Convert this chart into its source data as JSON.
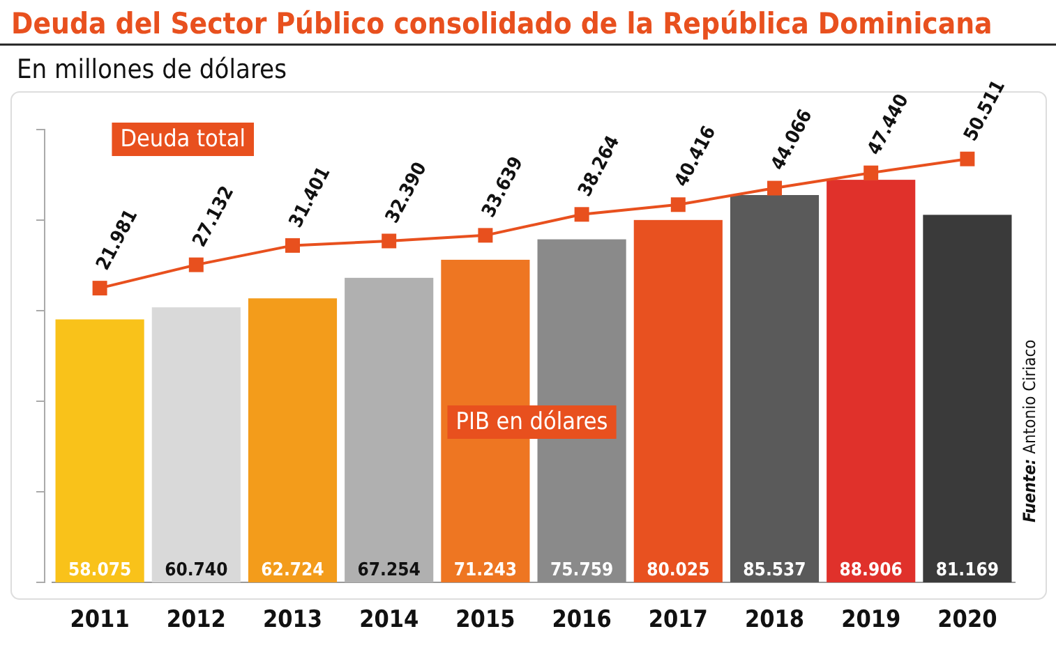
{
  "chart_data": {
    "type": "bar",
    "title": "Deuda del Sector Público consolidado de la República Dominicana",
    "subtitle": "En millones de dólares",
    "categories": [
      "2011",
      "2012",
      "2013",
      "2014",
      "2015",
      "2016",
      "2017",
      "2018",
      "2019",
      "2020"
    ],
    "ylim": [
      0,
      100000
    ],
    "yticks": [
      {
        "value": 0,
        "label": null
      },
      {
        "value": 20000,
        "label": null
      },
      {
        "value": 40000,
        "label": null
      },
      {
        "value": 60000,
        "label": null
      },
      {
        "value": 80000,
        "label": null
      },
      {
        "value": 100000,
        "label": null
      }
    ],
    "y2lim": [
      -43000,
      57000
    ],
    "tick_labels": "x",
    "grid": false,
    "series": [
      {
        "name": "PIB en dólares",
        "colors": [
          "#f9c21a",
          "#d9d9d9",
          "#f39c1b",
          "#b0b0b0",
          "#ee7622",
          "#8a8a8a",
          "#e85120",
          "#5a5a5a",
          "#e0312b",
          "#3a3a3a"
        ],
        "color": "#e8501e",
        "values": [
          58075,
          60740,
          62724,
          67254,
          71243,
          75759,
          80025,
          85537,
          88906,
          81169
        ],
        "value_labels": [
          "58.075",
          "60.740",
          "62.724",
          "67.254",
          "71.243",
          "75.759",
          "80.025",
          "85.537",
          "88.906",
          "81.169"
        ]
      },
      {
        "name": "Deuda total",
        "type": "line",
        "axis": "y2",
        "color": "#e8501e",
        "marker": "square",
        "line_style": "solid",
        "values": [
          21981,
          27132,
          31401,
          32390,
          33639,
          38264,
          40416,
          44066,
          47440,
          50511
        ],
        "value_labels": [
          "21.981",
          "27.132",
          "31.401",
          "32.390",
          "33.639",
          "38.264",
          "40.416",
          "44.066",
          "47.440",
          "50.511"
        ]
      }
    ],
    "annotations": [
      "Fuente: Antonio Ciriaco"
    ]
  }
}
